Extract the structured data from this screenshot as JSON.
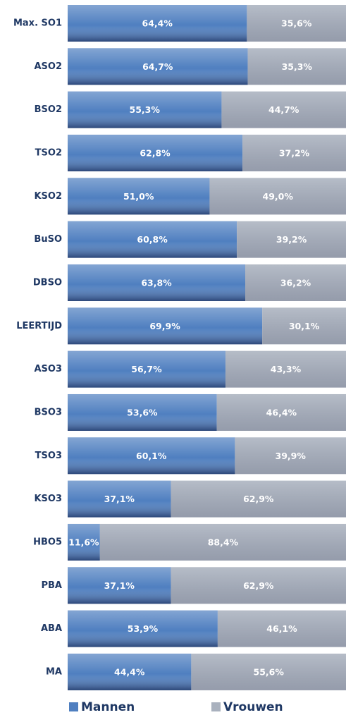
{
  "chart_data": {
    "type": "stacked_barh",
    "categories": [
      "Max. SO1",
      "ASO2",
      "BSO2",
      "TSO2",
      "KSO2",
      "BuSO",
      "DBSO",
      "LEERTIJD",
      "ASO3",
      "BSO3",
      "TSO3",
      "KSO3",
      "HBO5",
      "PBA",
      "ABA",
      "MA"
    ],
    "series": [
      {
        "name": "Mannen",
        "color": "#4f7fc0",
        "values": [
          64.4,
          64.7,
          55.3,
          62.8,
          51.0,
          60.8,
          63.8,
          69.9,
          56.7,
          53.6,
          60.1,
          37.1,
          11.6,
          37.1,
          53.9,
          44.4
        ],
        "value_labels": [
          "64,4%",
          "64,7%",
          "55,3%",
          "62,8%",
          "51,0%",
          "60,8%",
          "63,8%",
          "69,9%",
          "56,7%",
          "53,6%",
          "60,1%",
          "37,1%",
          "11,6%",
          "37,1%",
          "53,9%",
          "44,4%"
        ]
      },
      {
        "name": "Vrouwen",
        "color": "#a9b1be",
        "values": [
          35.6,
          35.3,
          44.7,
          37.2,
          49.0,
          39.2,
          36.2,
          30.1,
          43.3,
          46.4,
          39.9,
          62.9,
          88.4,
          62.9,
          46.1,
          55.6
        ],
        "value_labels": [
          "35,6%",
          "35,3%",
          "44,7%",
          "37,2%",
          "49,0%",
          "39,2%",
          "36,2%",
          "30,1%",
          "43,3%",
          "46,4%",
          "39,9%",
          "62,9%",
          "88,4%",
          "62,9%",
          "46,1%",
          "55,6%"
        ]
      }
    ],
    "xlim": [
      0,
      100
    ],
    "legend": "bottom"
  }
}
